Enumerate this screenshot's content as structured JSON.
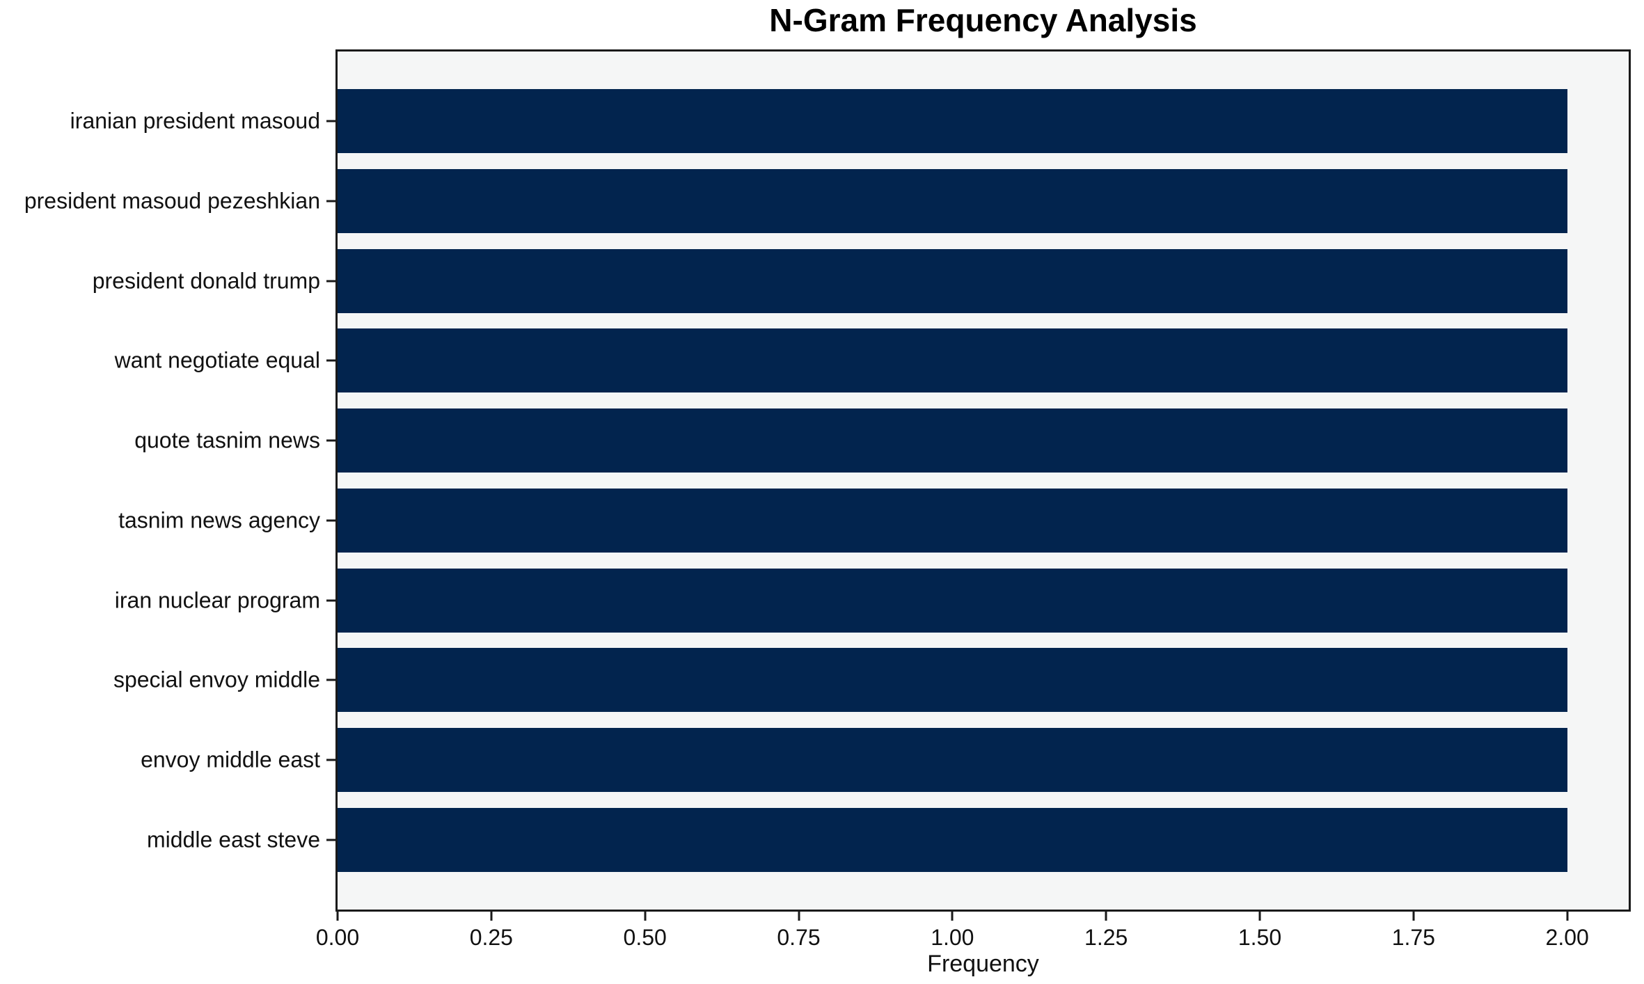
{
  "chart_data": {
    "type": "bar",
    "orientation": "horizontal",
    "title": "N-Gram Frequency Analysis",
    "xlabel": "Frequency",
    "ylabel": "",
    "categories": [
      "iranian president masoud",
      "president masoud pezeshkian",
      "president donald trump",
      "want negotiate equal",
      "quote tasnim news",
      "tasnim news agency",
      "iran nuclear program",
      "special envoy middle",
      "envoy middle east",
      "middle east steve"
    ],
    "values": [
      2.0,
      2.0,
      2.0,
      2.0,
      2.0,
      2.0,
      2.0,
      2.0,
      2.0,
      2.0
    ],
    "xlim": [
      0,
      2.1
    ],
    "xticks": [
      0.0,
      0.25,
      0.5,
      0.75,
      1.0,
      1.25,
      1.5,
      1.75,
      2.0
    ],
    "xtick_labels": [
      "0.00",
      "0.25",
      "0.50",
      "0.75",
      "1.00",
      "1.25",
      "1.50",
      "1.75",
      "2.00"
    ],
    "grid": false,
    "legend": "none",
    "colors": {
      "bar": "#02244e",
      "plot_background": "#f5f6f6",
      "figure_background": "#ffffff",
      "spine": "#1a1a1a",
      "text": "#111111"
    }
  }
}
